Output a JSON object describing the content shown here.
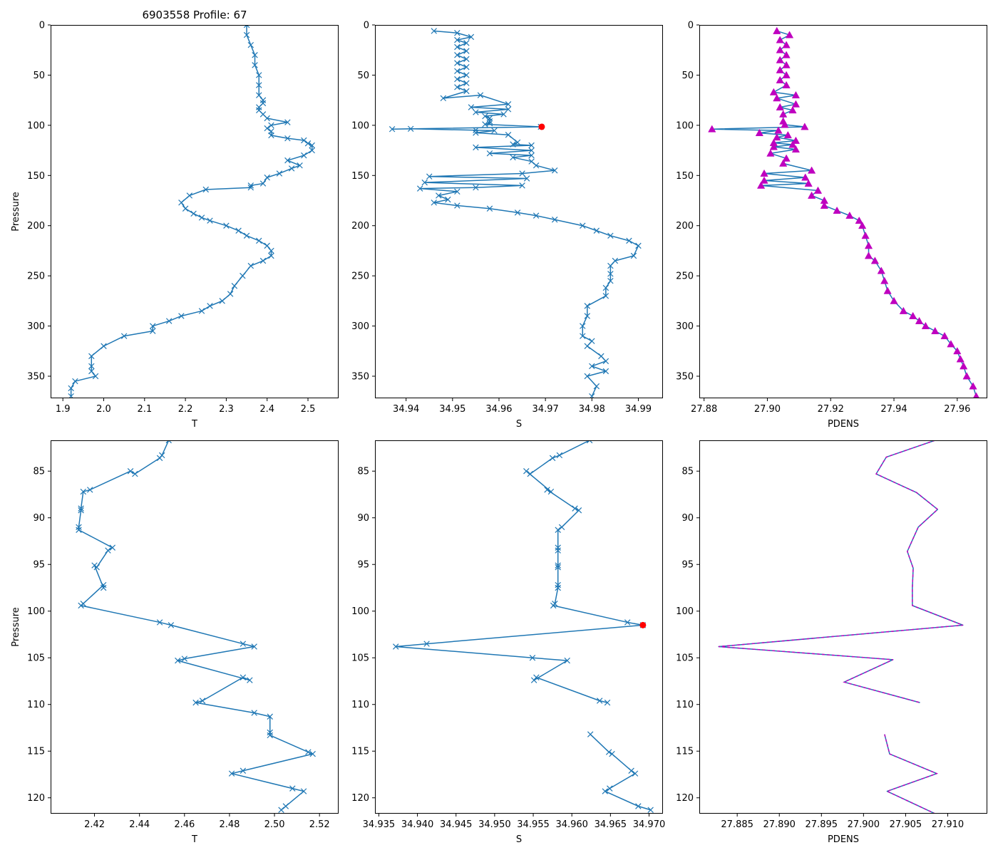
{
  "figure": {
    "title": "6903558 Profile: 67",
    "colors": {
      "line": "#1f77b4",
      "pdens_marker": "#bf00bf",
      "flag": "#ff0000",
      "dash": "#bf00bf",
      "axes": "#000000"
    }
  },
  "chart_data": [
    {
      "id": "T_full",
      "type": "line",
      "title": "6903558 Profile: 67",
      "xlabel": "T",
      "ylabel": "Pressure",
      "xlim": [
        1.87,
        2.575
      ],
      "ylim": [
        372,
        0
      ],
      "xticks": [
        1.9,
        2.0,
        2.1,
        2.2,
        2.3,
        2.4,
        2.5
      ],
      "xtick_labels": [
        "1.9",
        "2.0",
        "2.1",
        "2.2",
        "2.3",
        "2.4",
        "2.5"
      ],
      "yticks": [
        0,
        50,
        100,
        150,
        200,
        250,
        300,
        350
      ],
      "ytick_labels": [
        "0",
        "50",
        "100",
        "150",
        "200",
        "250",
        "300",
        "350"
      ],
      "marker": "x",
      "series": [
        {
          "name": "T",
          "x": [
            2.35,
            2.35,
            2.36,
            2.37,
            2.37,
            2.38,
            2.38,
            2.38,
            2.39,
            2.39,
            2.38,
            2.38,
            2.39,
            2.4,
            2.45,
            2.41,
            2.4,
            2.41,
            2.41,
            2.45,
            2.49,
            2.5,
            2.51,
            2.51,
            2.49,
            2.45,
            2.48,
            2.46,
            2.43,
            2.4,
            2.39,
            2.36,
            2.36,
            2.25,
            2.21,
            2.19,
            2.2,
            2.22,
            2.24,
            2.26,
            2.3,
            2.33,
            2.35,
            2.38,
            2.4,
            2.41,
            2.41,
            2.39,
            2.36,
            2.34,
            2.32,
            2.31,
            2.29,
            2.26,
            2.24,
            2.19,
            2.16,
            2.12,
            2.12,
            2.05,
            2.0,
            1.97,
            1.97,
            1.97,
            1.98,
            1.93,
            1.92,
            1.92
          ],
          "y": [
            0,
            10,
            20,
            30,
            40,
            50,
            60,
            70,
            75,
            78,
            82,
            85,
            89,
            93,
            97,
            100,
            103,
            106,
            110,
            113,
            115,
            118,
            120,
            125,
            130,
            135,
            140,
            143,
            148,
            152,
            158,
            160,
            162,
            164,
            170,
            177,
            183,
            188,
            192,
            195,
            200,
            205,
            210,
            215,
            220,
            225,
            230,
            235,
            240,
            250,
            260,
            268,
            275,
            280,
            285,
            290,
            295,
            300,
            305,
            310,
            320,
            330,
            340,
            345,
            350,
            355,
            362,
            370
          ]
        }
      ]
    },
    {
      "id": "S_full",
      "type": "line",
      "xlabel": "S",
      "ylabel": "",
      "xlim": [
        34.9333,
        34.9953
      ],
      "ylim": [
        372,
        0
      ],
      "xticks": [
        34.94,
        34.95,
        34.96,
        34.97,
        34.98,
        34.99
      ],
      "xtick_labels": [
        "34.94",
        "34.95",
        "34.96",
        "34.97",
        "34.98",
        "34.99"
      ],
      "yticks": [
        0,
        50,
        100,
        150,
        200,
        250,
        300,
        350
      ],
      "ytick_labels": [
        "0",
        "50",
        "100",
        "150",
        "200",
        "250",
        "300",
        "350"
      ],
      "marker": "x",
      "flag": {
        "x": 34.9692,
        "y": 101.5
      },
      "series": [
        {
          "name": "S",
          "x": [
            34.946,
            34.951,
            34.954,
            34.951,
            34.953,
            34.951,
            34.953,
            34.951,
            34.953,
            34.951,
            34.953,
            34.951,
            34.953,
            34.951,
            34.953,
            34.951,
            34.953,
            34.948,
            34.956,
            34.962,
            34.954,
            34.962,
            34.955,
            34.961,
            34.957,
            34.958,
            34.958,
            34.958,
            34.957,
            34.969,
            34.937,
            34.941,
            34.955,
            34.959,
            34.955,
            34.962,
            34.964,
            34.963,
            34.967,
            34.955,
            34.967,
            34.958,
            34.967,
            34.963,
            34.967,
            34.968,
            34.972,
            34.965,
            34.945,
            34.966,
            34.944,
            34.965,
            34.955,
            34.943,
            34.951,
            34.947,
            34.949,
            34.946,
            34.951,
            34.958,
            34.964,
            34.968,
            34.972,
            34.978,
            34.981,
            34.984,
            34.988,
            34.99,
            34.989,
            34.985,
            34.984,
            34.984,
            34.984,
            34.983,
            34.983,
            34.979,
            34.979,
            34.978,
            34.978,
            34.98,
            34.979,
            34.982,
            34.983,
            34.98,
            34.983,
            34.979,
            34.981,
            34.98
          ],
          "y": [
            6,
            8,
            12,
            15,
            18,
            22,
            26,
            30,
            34,
            38,
            42,
            46,
            50,
            54,
            58,
            62,
            66,
            73,
            70,
            79,
            82,
            84,
            87,
            89,
            91,
            93,
            96,
            98,
            99,
            101.5,
            103.8,
            103.5,
            104.9,
            105.3,
            107.5,
            109.5,
            117,
            119,
            120,
            122,
            125,
            128,
            130,
            132,
            136,
            140,
            145,
            148,
            151,
            153,
            157,
            160,
            162,
            163,
            166,
            170,
            174,
            177,
            180,
            183,
            187,
            190,
            194,
            200,
            205,
            210,
            215,
            220,
            230,
            235,
            240,
            248,
            255,
            262,
            270,
            280,
            290,
            300,
            310,
            315,
            320,
            330,
            335,
            340,
            345,
            350,
            360,
            370
          ]
        }
      ]
    },
    {
      "id": "PDENS_full",
      "type": "line",
      "xlabel": "PDENS",
      "ylabel": "",
      "xlim": [
        27.8785,
        27.9695
      ],
      "ylim": [
        372,
        0
      ],
      "xticks": [
        27.88,
        27.9,
        27.92,
        27.94,
        27.96
      ],
      "xtick_labels": [
        "27.88",
        "27.90",
        "27.92",
        "27.94",
        "27.96"
      ],
      "yticks": [
        0,
        50,
        100,
        150,
        200,
        250,
        300,
        350
      ],
      "ytick_labels": [
        "0",
        "50",
        "100",
        "150",
        "200",
        "250",
        "300",
        "350"
      ],
      "marker": "triangle",
      "series": [
        {
          "name": "PDENS",
          "x": [
            27.903,
            27.907,
            27.904,
            27.906,
            27.904,
            27.906,
            27.904,
            27.906,
            27.904,
            27.906,
            27.904,
            27.906,
            27.902,
            27.909,
            27.903,
            27.909,
            27.904,
            27.908,
            27.905,
            27.905,
            27.9055,
            27.9118,
            27.8825,
            27.9035,
            27.8975,
            27.9065,
            27.903,
            27.909,
            27.902,
            27.908,
            27.902,
            27.909,
            27.901,
            27.906,
            27.905,
            27.914,
            27.899,
            27.912,
            27.899,
            27.913,
            27.898,
            27.916,
            27.914,
            27.918,
            27.918,
            27.922,
            27.926,
            27.929,
            27.93,
            27.931,
            27.932,
            27.932,
            27.934,
            27.936,
            27.937,
            27.938,
            27.94,
            27.943,
            27.946,
            27.948,
            27.95,
            27.953,
            27.956,
            27.958,
            27.96,
            27.961,
            27.962,
            27.963,
            27.965,
            27.966
          ],
          "y": [
            6,
            10,
            15,
            20,
            25,
            30,
            35,
            40,
            45,
            50,
            55,
            60,
            67,
            70,
            73,
            79,
            82,
            85,
            89,
            96,
            99.4,
            101.5,
            103.8,
            105.2,
            107.6,
            109.8,
            112,
            115.3,
            117.5,
            119.3,
            121.5,
            124,
            128,
            133,
            138,
            145,
            148,
            152,
            155,
            158,
            160,
            165,
            170,
            175,
            180,
            185,
            190,
            195,
            200,
            210,
            220,
            230,
            235,
            245,
            255,
            265,
            275,
            285,
            290,
            295,
            300,
            305,
            310,
            318,
            325,
            333,
            340,
            350,
            360,
            370
          ]
        }
      ]
    },
    {
      "id": "T_zoom",
      "type": "line",
      "xlabel": "T",
      "ylabel": "Pressure",
      "xlim": [
        2.4005,
        2.5285
      ],
      "ylim": [
        121.7,
        81.7
      ],
      "xticks": [
        2.42,
        2.44,
        2.46,
        2.48,
        2.5,
        2.52
      ],
      "xtick_labels": [
        "2.42",
        "2.44",
        "2.46",
        "2.48",
        "2.50",
        "2.52"
      ],
      "yticks": [
        85,
        90,
        95,
        100,
        105,
        110,
        115,
        120
      ],
      "ytick_labels": [
        "85",
        "90",
        "95",
        "100",
        "105",
        "110",
        "115",
        "120"
      ],
      "marker": "x",
      "series": [
        {
          "name": "T",
          "x": [
            2.453,
            2.45,
            2.449,
            2.438,
            2.436,
            2.418,
            2.415,
            2.414,
            2.414,
            2.413,
            2.413,
            2.428,
            2.426,
            2.421,
            2.42,
            2.424,
            2.424,
            2.415,
            2.414,
            2.449,
            2.454,
            2.486,
            2.491,
            2.46,
            2.457,
            2.489,
            2.486,
            2.468,
            2.465,
            2.491,
            2.498,
            2.498,
            2.498,
            2.515,
            2.517,
            2.486,
            2.481,
            2.508,
            2.513,
            2.505,
            2.503
          ],
          "y": [
            81.7,
            83.3,
            83.6,
            85.3,
            85.0,
            87.0,
            87.2,
            89.0,
            89.2,
            91.0,
            91.3,
            93.2,
            93.5,
            95.3,
            95.1,
            97.5,
            97.2,
            99.2,
            99.4,
            101.2,
            101.5,
            103.5,
            103.8,
            105.1,
            105.3,
            107.4,
            107.1,
            109.6,
            109.8,
            110.9,
            111.3,
            113.0,
            113.3,
            115.1,
            115.3,
            117.1,
            117.4,
            119.0,
            119.3,
            120.9,
            121.3
          ]
        }
      ]
    },
    {
      "id": "S_zoom",
      "type": "line",
      "xlabel": "S",
      "ylabel": "",
      "xlim": [
        34.9345,
        34.9718
      ],
      "ylim": [
        121.7,
        81.7
      ],
      "xticks": [
        34.935,
        34.94,
        34.945,
        34.95,
        34.955,
        34.96,
        34.965,
        34.97
      ],
      "xtick_labels": [
        "34.935",
        "34.940",
        "34.945",
        "34.950",
        "34.955",
        "34.960",
        "34.965",
        "34.970"
      ],
      "yticks": [
        85,
        90,
        95,
        100,
        105,
        110,
        115,
        120
      ],
      "ytick_labels": [
        "85",
        "90",
        "95",
        "100",
        "105",
        "110",
        "115",
        "120"
      ],
      "marker": "x",
      "flag": {
        "x": 34.9692,
        "y": 101.5
      },
      "series": [
        {
          "name": "S",
          "x": [
            34.9623,
            34.9584,
            34.9575,
            34.9546,
            34.9541,
            34.9573,
            34.9568,
            34.9604,
            34.9609,
            34.9587,
            34.9582,
            34.9582,
            34.9582,
            34.9582,
            34.9582,
            34.9582,
            34.9582,
            34.9578,
            34.9576,
            34.9672,
            34.9692,
            34.9412,
            34.9372,
            34.9549,
            34.9594,
            34.9551,
            34.9554,
            34.9636,
            34.9646
          ],
          "y": [
            81.7,
            83.3,
            83.6,
            85.3,
            85.0,
            87.2,
            87.0,
            89.0,
            89.2,
            91.0,
            91.3,
            93.2,
            93.5,
            95.1,
            95.3,
            97.2,
            97.5,
            99.2,
            99.4,
            101.2,
            101.5,
            103.5,
            103.8,
            105.0,
            105.3,
            107.4,
            107.1,
            109.6,
            109.8
          ]
        },
        {
          "name": "S-2",
          "x": [
            34.9624,
            34.9648,
            34.9652,
            34.9677,
            34.9682,
            34.9649,
            34.9643,
            34.9686,
            34.9702
          ],
          "y": [
            113.2,
            115.1,
            115.3,
            117.1,
            117.4,
            119.0,
            119.3,
            120.9,
            121.3
          ]
        }
      ]
    },
    {
      "id": "PDENS_zoom",
      "type": "line",
      "xlabel": "PDENS",
      "ylabel": "",
      "xlim": [
        27.8805,
        27.9147
      ],
      "ylim": [
        121.7,
        81.7
      ],
      "xticks": [
        27.885,
        27.89,
        27.895,
        27.9,
        27.905,
        27.91
      ],
      "xtick_labels": [
        "27.885",
        "27.890",
        "27.895",
        "27.900",
        "27.905",
        "27.910"
      ],
      "yticks": [
        85,
        90,
        95,
        100,
        105,
        110,
        115,
        120
      ],
      "ytick_labels": [
        "85",
        "90",
        "95",
        "100",
        "105",
        "110",
        "115",
        "120"
      ],
      "marker": "none",
      "series": [
        {
          "name": "PDENS",
          "x": [
            27.9085,
            27.9027,
            27.9015,
            27.9063,
            27.9088,
            27.9065,
            27.9052,
            27.9059,
            27.9058,
            27.9058,
            27.9118,
            27.8828,
            27.9035,
            27.8977,
            27.9067
          ],
          "y": [
            81.7,
            83.5,
            85.3,
            87.3,
            89.1,
            91.0,
            93.6,
            95.4,
            97.5,
            99.4,
            101.5,
            103.8,
            105.2,
            107.6,
            109.8
          ]
        },
        {
          "name": "PDENS-2",
          "x": [
            27.9025,
            27.9031,
            27.9087,
            27.9028,
            27.9085
          ],
          "y": [
            113.2,
            115.3,
            117.4,
            119.3,
            121.7
          ]
        }
      ]
    }
  ]
}
